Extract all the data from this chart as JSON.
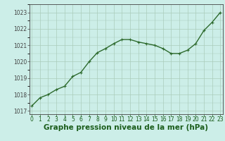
{
  "x": [
    0,
    1,
    2,
    3,
    4,
    5,
    6,
    7,
    8,
    9,
    10,
    11,
    12,
    13,
    14,
    15,
    16,
    17,
    18,
    19,
    20,
    21,
    22,
    23
  ],
  "y": [
    1017.3,
    1017.8,
    1018.0,
    1018.3,
    1018.5,
    1019.1,
    1019.35,
    1020.0,
    1020.55,
    1020.8,
    1021.1,
    1021.35,
    1021.35,
    1021.2,
    1021.1,
    1021.0,
    1020.8,
    1020.5,
    1020.5,
    1020.7,
    1021.1,
    1021.9,
    1022.4,
    1023.0
  ],
  "ylim": [
    1016.8,
    1023.5
  ],
  "yticks": [
    1017,
    1018,
    1019,
    1020,
    1021,
    1022,
    1023
  ],
  "xticks": [
    0,
    1,
    2,
    3,
    4,
    5,
    6,
    7,
    8,
    9,
    10,
    11,
    12,
    13,
    14,
    15,
    16,
    17,
    18,
    19,
    20,
    21,
    22,
    23
  ],
  "xlabel": "Graphe pression niveau de la mer (hPa)",
  "line_color": "#2d6a2d",
  "marker": "+",
  "bg_color": "#cceee8",
  "grid_color": "#aaccbb",
  "axis_color": "#444444",
  "label_color": "#1a5c1a",
  "tick_fontsize": 5.5,
  "xlabel_fontsize": 7.5,
  "linewidth": 1.0,
  "markersize": 3.5,
  "xlim": [
    -0.3,
    23.3
  ]
}
